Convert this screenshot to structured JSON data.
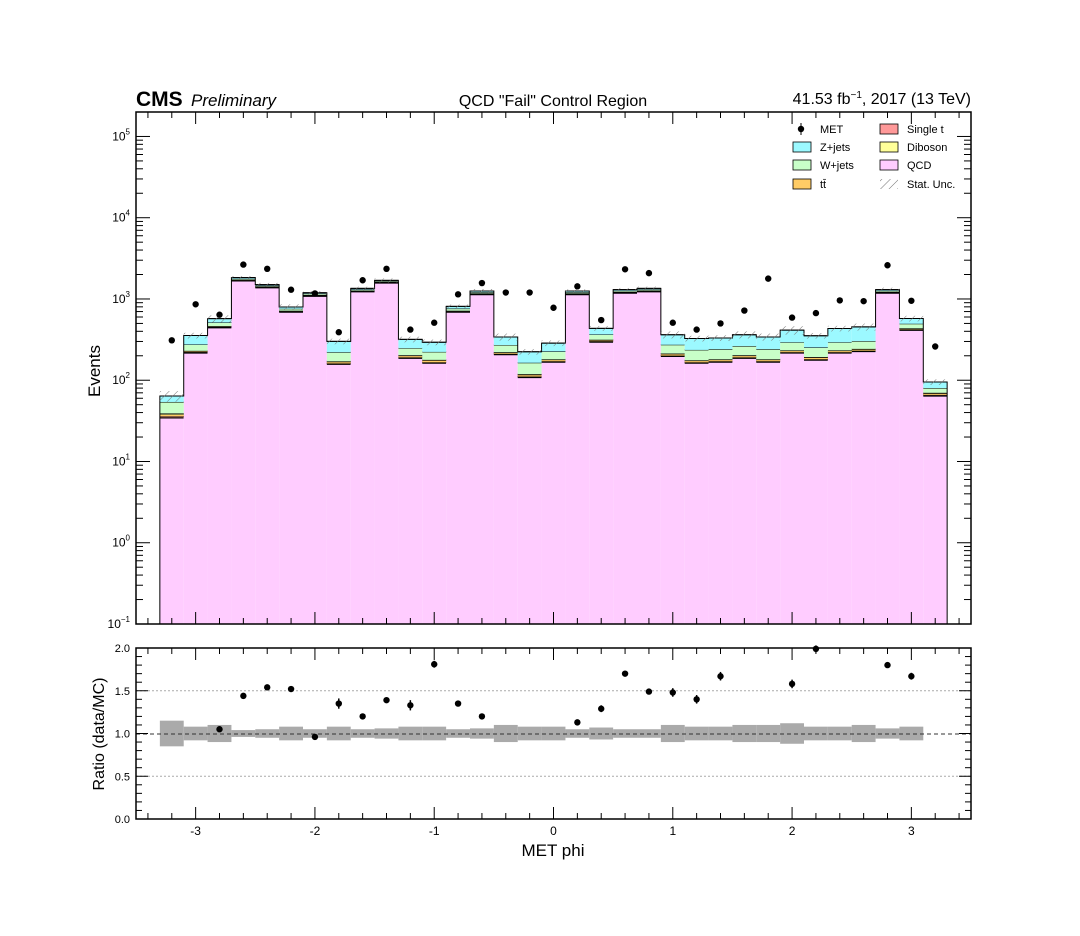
{
  "header": {
    "experiment": "CMS",
    "status": "Preliminary",
    "title": "QCD \"Fail\" Control Region",
    "lumi_value": "41.53 fb",
    "lumi_exp": "−1",
    "lumi_tail": ", 2017 (13 TeV)"
  },
  "colors": {
    "qcd": "#ffccff",
    "zjets": "#9cf9ff",
    "wjets": "#c8ffc8",
    "ttbar": "#ffcc66",
    "diboson": "#ffff99",
    "singlet": "#ff9999",
    "unc_band": "#aaaaaa"
  },
  "chart_data": [
    {
      "type": "bar",
      "subtype": "stacked-histogram",
      "ylabel": "Events",
      "yscale": "log",
      "ylim": [
        0.1,
        200000
      ],
      "xlim": [
        -3.5,
        3.5
      ],
      "ytick_labels": [
        {
          "base": "10",
          "exp": "−1",
          "value": 0.1
        },
        {
          "base": "10",
          "exp": "0",
          "value": 1
        },
        {
          "base": "10",
          "exp": "1",
          "value": 10
        },
        {
          "base": "10",
          "exp": "2",
          "value": 100
        },
        {
          "base": "10",
          "exp": "3",
          "value": 1000
        },
        {
          "base": "10",
          "exp": "4",
          "value": 10000
        },
        {
          "base": "10",
          "exp": "5",
          "value": 100000
        }
      ],
      "legend": [
        {
          "key": "data",
          "label": "MET"
        },
        {
          "key": "singlet",
          "label": "Single t"
        },
        {
          "key": "zjets",
          "label": "Z+jets"
        },
        {
          "key": "diboson",
          "label": "Diboson"
        },
        {
          "key": "wjets",
          "label": "W+jets"
        },
        {
          "key": "qcd",
          "label": "QCD"
        },
        {
          "key": "ttbar",
          "label": "tt̄"
        },
        {
          "key": "unc",
          "label": "Stat. Unc."
        }
      ],
      "legend_position": "top-right",
      "bin_edges": [
        -3.3,
        -3.1,
        -2.9,
        -2.7,
        -2.5,
        -2.3,
        -2.1,
        -1.9,
        -1.7,
        -1.5,
        -1.3,
        -1.1,
        -0.9,
        -0.7,
        -0.5,
        -0.3,
        -0.1,
        0.1,
        0.3,
        0.5,
        0.7,
        0.9,
        1.1,
        1.3,
        1.5,
        1.7,
        1.9,
        2.1,
        2.3,
        2.5,
        2.7,
        2.9,
        3.1,
        3.3
      ],
      "series": [
        {
          "key": "qcd",
          "name": "QCD",
          "values": [
            35,
            220,
            450,
            1700,
            1400,
            700,
            1100,
            160,
            1250,
            1600,
            190,
            165,
            700,
            1150,
            210,
            110,
            170,
            1150,
            300,
            1200,
            1250,
            200,
            165,
            170,
            190,
            170,
            220,
            180,
            220,
            230,
            1200,
            420,
            65
          ]
        },
        {
          "key": "singlet",
          "name": "Single t",
          "values": [
            1,
            2,
            2,
            4,
            3,
            2,
            3,
            1,
            3,
            3,
            1,
            1,
            2,
            3,
            1,
            1,
            1,
            3,
            2,
            3,
            3,
            1,
            1,
            1,
            1,
            1,
            1,
            1,
            1,
            1,
            3,
            2,
            1
          ]
        },
        {
          "key": "ttbar",
          "name": "tt̄",
          "values": [
            2,
            6,
            8,
            20,
            15,
            12,
            15,
            8,
            12,
            15,
            10,
            10,
            12,
            15,
            8,
            6,
            8,
            15,
            10,
            15,
            15,
            10,
            8,
            8,
            10,
            8,
            10,
            10,
            10,
            10,
            15,
            10,
            3
          ]
        },
        {
          "key": "diboson",
          "name": "Diboson",
          "values": [
            1,
            2,
            3,
            5,
            4,
            3,
            4,
            2,
            4,
            4,
            2,
            2,
            3,
            4,
            2,
            2,
            2,
            4,
            3,
            4,
            4,
            2,
            2,
            2,
            2,
            2,
            2,
            2,
            2,
            2,
            4,
            3,
            1
          ]
        },
        {
          "key": "wjets",
          "name": "W+jets",
          "values": [
            15,
            45,
            50,
            50,
            40,
            40,
            40,
            50,
            40,
            40,
            45,
            45,
            45,
            40,
            50,
            45,
            45,
            40,
            50,
            40,
            40,
            60,
            60,
            60,
            60,
            60,
            60,
            60,
            60,
            60,
            40,
            60,
            10
          ]
        },
        {
          "key": "zjets",
          "name": "Z+jets",
          "values": [
            10,
            80,
            60,
            60,
            40,
            40,
            30,
            80,
            40,
            30,
            70,
            70,
            50,
            40,
            70,
            60,
            60,
            40,
            70,
            40,
            40,
            90,
            90,
            90,
            100,
            100,
            120,
            100,
            140,
            150,
            40,
            80,
            15
          ]
        }
      ],
      "data_points": {
        "name": "MET",
        "x": [
          -3.2,
          -3.0,
          -2.8,
          -2.6,
          -2.4,
          -2.2,
          -2.0,
          -1.8,
          -1.6,
          -1.4,
          -1.2,
          -1.0,
          -0.8,
          -0.6,
          -0.4,
          -0.2,
          0.0,
          0.2,
          0.4,
          0.6,
          0.8,
          1.0,
          1.2,
          1.4,
          1.6,
          1.8,
          2.0,
          2.2,
          2.4,
          2.6,
          2.8,
          3.0,
          3.2
        ],
        "y": [
          310,
          860,
          640,
          2650,
          2350,
          1300,
          1170,
          390,
          1700,
          2350,
          420,
          510,
          1140,
          1570,
          1200,
          1200,
          780,
          1430,
          550,
          2320,
          2080,
          510,
          420,
          500,
          720,
          1780,
          590,
          670,
          960,
          940,
          2600,
          950,
          260
        ]
      }
    },
    {
      "type": "scatter",
      "subtype": "ratio",
      "xlabel": "MET phi",
      "ylabel": "Ratio (data/MC)",
      "ylim": [
        0.0,
        2.0
      ],
      "xlim": [
        -3.5,
        3.5
      ],
      "yticks": [
        "0.0",
        "0.5",
        "1.0",
        "1.5",
        "2.0"
      ],
      "xticks": [
        "-3",
        "-2",
        "-1",
        "0",
        "1",
        "2",
        "3"
      ],
      "grid": "horizontal",
      "reference_line": 1.0,
      "x": [
        -2.8,
        -2.6,
        -2.4,
        -2.2,
        -2.0,
        -1.8,
        -1.6,
        -1.4,
        -1.2,
        -1.0,
        -0.8,
        -0.6,
        0.2,
        0.4,
        0.6,
        0.8,
        1.0,
        1.2,
        1.4,
        2.0,
        2.2,
        2.8,
        3.0
      ],
      "y": [
        1.05,
        1.44,
        1.54,
        1.52,
        0.96,
        1.35,
        1.2,
        1.39,
        1.33,
        1.81,
        1.35,
        1.2,
        1.13,
        1.29,
        1.7,
        1.49,
        1.48,
        1.4,
        1.67,
        1.58,
        1.99,
        1.8,
        1.67
      ],
      "yerr": [
        0.02,
        0.02,
        0.02,
        0.02,
        0.02,
        0.06,
        0.03,
        0.03,
        0.06,
        0.04,
        0.03,
        0.02,
        0.02,
        0.04,
        0.02,
        0.02,
        0.05,
        0.05,
        0.05,
        0.05,
        0.04,
        0.02,
        0.04
      ],
      "unc_band_bins": [
        {
          "x": [
            -3.3,
            -3.1
          ],
          "half_width": 0.15
        },
        {
          "x": [
            -3.1,
            -2.9
          ],
          "half_width": 0.08
        },
        {
          "x": [
            -2.9,
            -2.7
          ],
          "half_width": 0.1
        },
        {
          "x": [
            -2.7,
            -2.5
          ],
          "half_width": 0.04
        },
        {
          "x": [
            -2.5,
            -2.3
          ],
          "half_width": 0.05
        },
        {
          "x": [
            -2.3,
            -2.1
          ],
          "half_width": 0.08
        },
        {
          "x": [
            -2.1,
            -1.9
          ],
          "half_width": 0.05
        },
        {
          "x": [
            -1.9,
            -1.7
          ],
          "half_width": 0.08
        },
        {
          "x": [
            -1.7,
            -1.5
          ],
          "half_width": 0.05
        },
        {
          "x": [
            -1.5,
            -1.3
          ],
          "half_width": 0.06
        },
        {
          "x": [
            -1.3,
            -1.1
          ],
          "half_width": 0.08
        },
        {
          "x": [
            -1.1,
            -0.9
          ],
          "half_width": 0.08
        },
        {
          "x": [
            -0.9,
            -0.7
          ],
          "half_width": 0.05
        },
        {
          "x": [
            -0.7,
            -0.5
          ],
          "half_width": 0.06
        },
        {
          "x": [
            -0.5,
            -0.3
          ],
          "half_width": 0.1
        },
        {
          "x": [
            -0.3,
            -0.1
          ],
          "half_width": 0.08
        },
        {
          "x": [
            -0.1,
            0.1
          ],
          "half_width": 0.08
        },
        {
          "x": [
            0.1,
            0.3
          ],
          "half_width": 0.05
        },
        {
          "x": [
            0.3,
            0.5
          ],
          "half_width": 0.07
        },
        {
          "x": [
            0.5,
            0.7
          ],
          "half_width": 0.05
        },
        {
          "x": [
            0.7,
            0.9
          ],
          "half_width": 0.05
        },
        {
          "x": [
            0.9,
            1.1
          ],
          "half_width": 0.1
        },
        {
          "x": [
            1.1,
            1.3
          ],
          "half_width": 0.08
        },
        {
          "x": [
            1.3,
            1.5
          ],
          "half_width": 0.08
        },
        {
          "x": [
            1.5,
            1.7
          ],
          "half_width": 0.1
        },
        {
          "x": [
            1.7,
            1.9
          ],
          "half_width": 0.1
        },
        {
          "x": [
            1.9,
            2.1
          ],
          "half_width": 0.12
        },
        {
          "x": [
            2.1,
            2.3
          ],
          "half_width": 0.08
        },
        {
          "x": [
            2.3,
            2.5
          ],
          "half_width": 0.08
        },
        {
          "x": [
            2.5,
            2.7
          ],
          "half_width": 0.1
        },
        {
          "x": [
            2.7,
            2.9
          ],
          "half_width": 0.06
        },
        {
          "x": [
            2.9,
            3.1
          ],
          "half_width": 0.08
        }
      ]
    }
  ]
}
